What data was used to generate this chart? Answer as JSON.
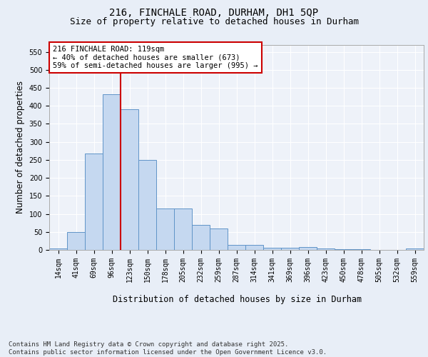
{
  "title1": "216, FINCHALE ROAD, DURHAM, DH1 5QP",
  "title2": "Size of property relative to detached houses in Durham",
  "xlabel": "Distribution of detached houses by size in Durham",
  "ylabel": "Number of detached properties",
  "categories": [
    "14sqm",
    "41sqm",
    "69sqm",
    "96sqm",
    "123sqm",
    "150sqm",
    "178sqm",
    "205sqm",
    "232sqm",
    "259sqm",
    "287sqm",
    "314sqm",
    "341sqm",
    "369sqm",
    "396sqm",
    "423sqm",
    "450sqm",
    "478sqm",
    "505sqm",
    "532sqm",
    "559sqm"
  ],
  "values": [
    3,
    50,
    268,
    432,
    390,
    250,
    115,
    115,
    70,
    60,
    13,
    13,
    5,
    5,
    7,
    4,
    1,
    1,
    0,
    0,
    3
  ],
  "bar_color": "#c5d8f0",
  "bar_edge_color": "#6094c8",
  "vline_color": "#cc0000",
  "annotation_text": "216 FINCHALE ROAD: 119sqm\n← 40% of detached houses are smaller (673)\n59% of semi-detached houses are larger (995) →",
  "annotation_box_color": "#ffffff",
  "annotation_box_edge": "#cc0000",
  "bg_color": "#e8eef7",
  "plot_bg": "#eef2f9",
  "grid_color": "#ffffff",
  "ylim": [
    0,
    570
  ],
  "yticks": [
    0,
    50,
    100,
    150,
    200,
    250,
    300,
    350,
    400,
    450,
    500,
    550
  ],
  "footer": "Contains HM Land Registry data © Crown copyright and database right 2025.\nContains public sector information licensed under the Open Government Licence v3.0.",
  "title_fontsize": 10,
  "subtitle_fontsize": 9,
  "axis_label_fontsize": 8.5,
  "tick_fontsize": 7,
  "annotation_fontsize": 7.5,
  "footer_fontsize": 6.5
}
